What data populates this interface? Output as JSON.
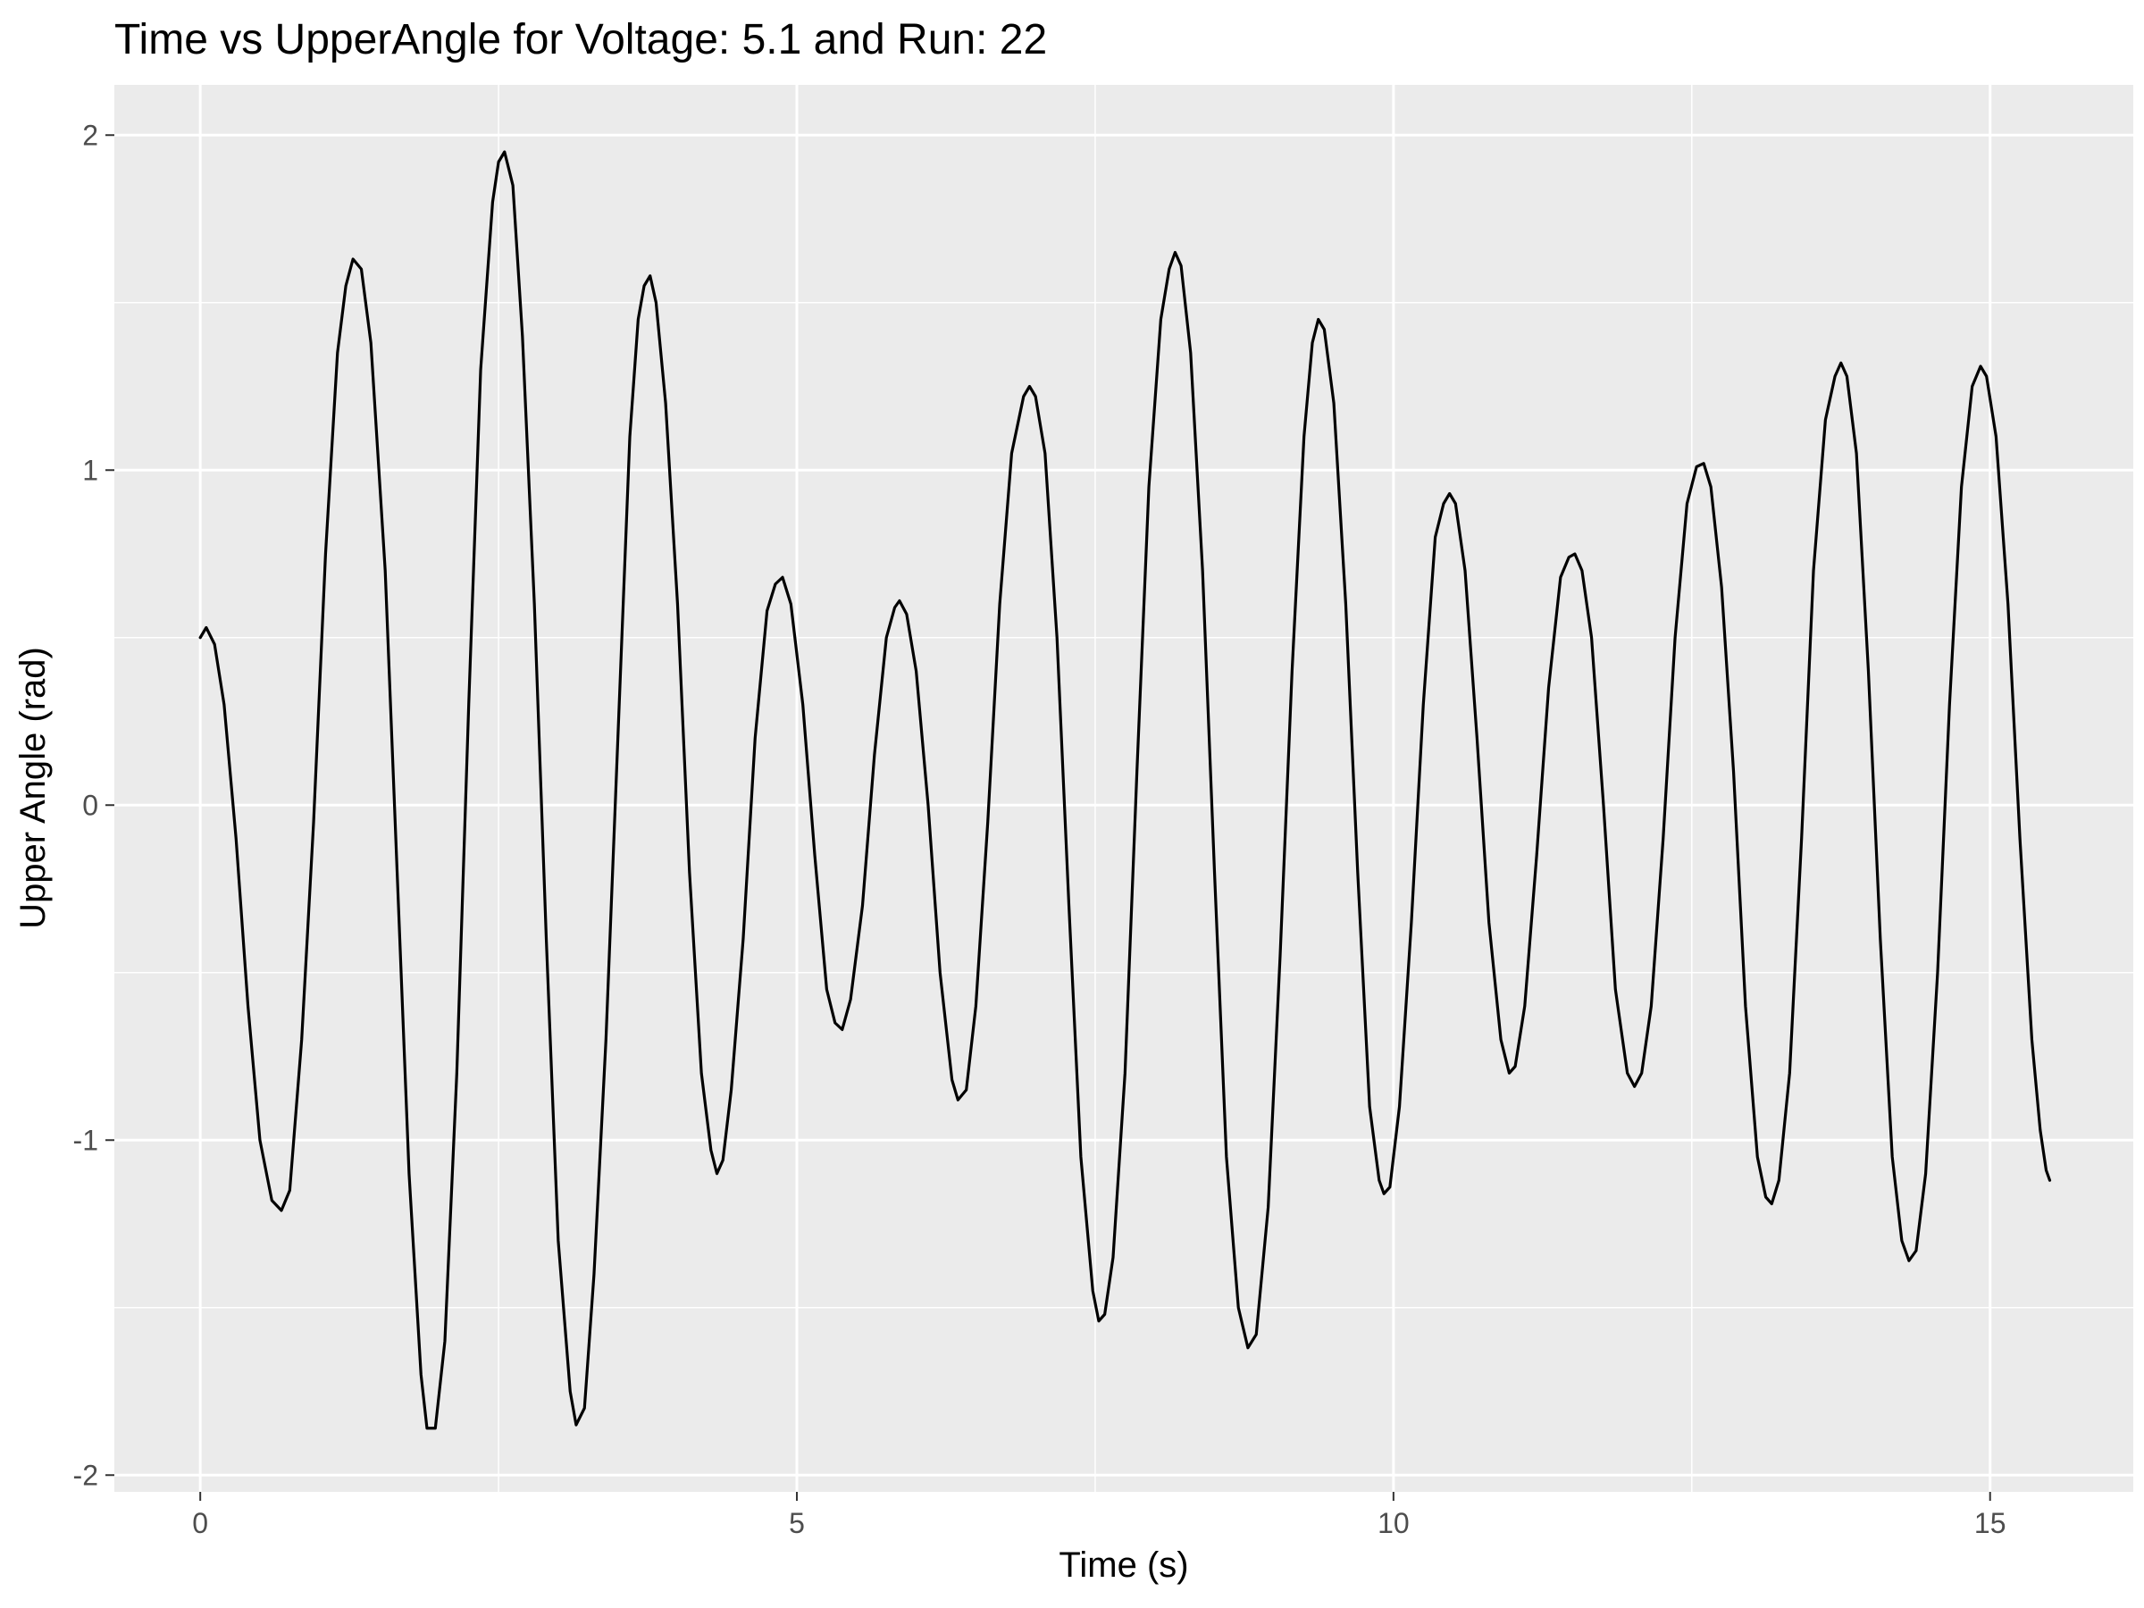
{
  "chart_data": {
    "type": "line",
    "title": "Time vs UpperAngle for Voltage: 5.1 and Run: 22",
    "xlabel": "Time (s)",
    "ylabel": "Upper Angle (rad)",
    "xlim": [
      -0.72,
      16.2
    ],
    "ylim": [
      -2.05,
      2.15
    ],
    "x_ticks": [
      0,
      5,
      10,
      15
    ],
    "x_tick_labels": [
      "0",
      "5",
      "10",
      "15"
    ],
    "y_ticks": [
      -2,
      -1,
      0,
      1,
      2
    ],
    "y_tick_labels": [
      "-2",
      "-1",
      "0",
      "1",
      "2"
    ],
    "grid": true,
    "legend": "none",
    "colors": {
      "panel_background": "#ebebeb",
      "grid": "#ffffff",
      "line": "#000000",
      "tick_text": "#4d4d4d",
      "text": "#000000"
    },
    "series": [
      {
        "points": [
          [
            0.0,
            0.5
          ],
          [
            0.05,
            0.53
          ],
          [
            0.12,
            0.48
          ],
          [
            0.2,
            0.3
          ],
          [
            0.3,
            -0.1
          ],
          [
            0.4,
            -0.6
          ],
          [
            0.5,
            -1.0
          ],
          [
            0.6,
            -1.18
          ],
          [
            0.68,
            -1.21
          ],
          [
            0.75,
            -1.15
          ],
          [
            0.85,
            -0.7
          ],
          [
            0.95,
            -0.05
          ],
          [
            1.05,
            0.75
          ],
          [
            1.15,
            1.35
          ],
          [
            1.22,
            1.55
          ],
          [
            1.28,
            1.63
          ],
          [
            1.35,
            1.6
          ],
          [
            1.43,
            1.38
          ],
          [
            1.55,
            0.7
          ],
          [
            1.65,
            -0.2
          ],
          [
            1.75,
            -1.1
          ],
          [
            1.85,
            -1.7
          ],
          [
            1.9,
            -1.86
          ],
          [
            1.97,
            -1.86
          ],
          [
            2.05,
            -1.6
          ],
          [
            2.15,
            -0.8
          ],
          [
            2.25,
            0.3
          ],
          [
            2.35,
            1.3
          ],
          [
            2.45,
            1.8
          ],
          [
            2.5,
            1.92
          ],
          [
            2.55,
            1.95
          ],
          [
            2.62,
            1.85
          ],
          [
            2.7,
            1.4
          ],
          [
            2.8,
            0.6
          ],
          [
            2.9,
            -0.4
          ],
          [
            3.0,
            -1.3
          ],
          [
            3.1,
            -1.75
          ],
          [
            3.15,
            -1.85
          ],
          [
            3.22,
            -1.8
          ],
          [
            3.3,
            -1.4
          ],
          [
            3.4,
            -0.7
          ],
          [
            3.5,
            0.2
          ],
          [
            3.6,
            1.1
          ],
          [
            3.67,
            1.45
          ],
          [
            3.72,
            1.55
          ],
          [
            3.77,
            1.58
          ],
          [
            3.82,
            1.5
          ],
          [
            3.9,
            1.2
          ],
          [
            4.0,
            0.6
          ],
          [
            4.1,
            -0.2
          ],
          [
            4.2,
            -0.8
          ],
          [
            4.28,
            -1.03
          ],
          [
            4.33,
            -1.1
          ],
          [
            4.38,
            -1.06
          ],
          [
            4.45,
            -0.85
          ],
          [
            4.55,
            -0.4
          ],
          [
            4.65,
            0.2
          ],
          [
            4.75,
            0.58
          ],
          [
            4.82,
            0.66
          ],
          [
            4.88,
            0.68
          ],
          [
            4.95,
            0.6
          ],
          [
            5.05,
            0.3
          ],
          [
            5.15,
            -0.15
          ],
          [
            5.25,
            -0.55
          ],
          [
            5.32,
            -0.65
          ],
          [
            5.38,
            -0.67
          ],
          [
            5.45,
            -0.58
          ],
          [
            5.55,
            -0.3
          ],
          [
            5.65,
            0.15
          ],
          [
            5.75,
            0.5
          ],
          [
            5.82,
            0.59
          ],
          [
            5.86,
            0.61
          ],
          [
            5.92,
            0.57
          ],
          [
            6.0,
            0.4
          ],
          [
            6.1,
            0.0
          ],
          [
            6.2,
            -0.5
          ],
          [
            6.3,
            -0.82
          ],
          [
            6.35,
            -0.88
          ],
          [
            6.42,
            -0.85
          ],
          [
            6.5,
            -0.6
          ],
          [
            6.6,
            -0.05
          ],
          [
            6.7,
            0.6
          ],
          [
            6.8,
            1.05
          ],
          [
            6.9,
            1.22
          ],
          [
            6.95,
            1.25
          ],
          [
            7.0,
            1.22
          ],
          [
            7.08,
            1.05
          ],
          [
            7.18,
            0.5
          ],
          [
            7.28,
            -0.3
          ],
          [
            7.38,
            -1.05
          ],
          [
            7.48,
            -1.45
          ],
          [
            7.53,
            -1.54
          ],
          [
            7.58,
            -1.52
          ],
          [
            7.65,
            -1.35
          ],
          [
            7.75,
            -0.8
          ],
          [
            7.85,
            0.1
          ],
          [
            7.95,
            0.95
          ],
          [
            8.05,
            1.45
          ],
          [
            8.12,
            1.6
          ],
          [
            8.17,
            1.65
          ],
          [
            8.22,
            1.61
          ],
          [
            8.3,
            1.35
          ],
          [
            8.4,
            0.7
          ],
          [
            8.5,
            -0.2
          ],
          [
            8.6,
            -1.05
          ],
          [
            8.7,
            -1.5
          ],
          [
            8.78,
            -1.62
          ],
          [
            8.85,
            -1.58
          ],
          [
            8.95,
            -1.2
          ],
          [
            9.05,
            -0.45
          ],
          [
            9.15,
            0.4
          ],
          [
            9.25,
            1.1
          ],
          [
            9.32,
            1.38
          ],
          [
            9.37,
            1.45
          ],
          [
            9.42,
            1.42
          ],
          [
            9.5,
            1.2
          ],
          [
            9.6,
            0.6
          ],
          [
            9.7,
            -0.2
          ],
          [
            9.8,
            -0.9
          ],
          [
            9.88,
            -1.12
          ],
          [
            9.92,
            -1.16
          ],
          [
            9.97,
            -1.14
          ],
          [
            10.05,
            -0.9
          ],
          [
            10.15,
            -0.35
          ],
          [
            10.25,
            0.3
          ],
          [
            10.35,
            0.8
          ],
          [
            10.42,
            0.9
          ],
          [
            10.47,
            0.93
          ],
          [
            10.52,
            0.9
          ],
          [
            10.6,
            0.7
          ],
          [
            10.7,
            0.2
          ],
          [
            10.8,
            -0.35
          ],
          [
            10.9,
            -0.7
          ],
          [
            10.97,
            -0.8
          ],
          [
            11.02,
            -0.78
          ],
          [
            11.1,
            -0.6
          ],
          [
            11.2,
            -0.15
          ],
          [
            11.3,
            0.35
          ],
          [
            11.4,
            0.68
          ],
          [
            11.47,
            0.74
          ],
          [
            11.52,
            0.75
          ],
          [
            11.58,
            0.7
          ],
          [
            11.66,
            0.5
          ],
          [
            11.76,
            0.0
          ],
          [
            11.86,
            -0.55
          ],
          [
            11.96,
            -0.8
          ],
          [
            12.02,
            -0.84
          ],
          [
            12.08,
            -0.8
          ],
          [
            12.16,
            -0.6
          ],
          [
            12.26,
            -0.1
          ],
          [
            12.36,
            0.5
          ],
          [
            12.46,
            0.9
          ],
          [
            12.54,
            1.01
          ],
          [
            12.6,
            1.02
          ],
          [
            12.66,
            0.95
          ],
          [
            12.75,
            0.65
          ],
          [
            12.85,
            0.1
          ],
          [
            12.95,
            -0.6
          ],
          [
            13.05,
            -1.05
          ],
          [
            13.12,
            -1.17
          ],
          [
            13.17,
            -1.19
          ],
          [
            13.23,
            -1.12
          ],
          [
            13.32,
            -0.8
          ],
          [
            13.42,
            -0.1
          ],
          [
            13.52,
            0.7
          ],
          [
            13.62,
            1.15
          ],
          [
            13.7,
            1.28
          ],
          [
            13.75,
            1.32
          ],
          [
            13.8,
            1.28
          ],
          [
            13.88,
            1.05
          ],
          [
            13.98,
            0.4
          ],
          [
            14.08,
            -0.4
          ],
          [
            14.18,
            -1.05
          ],
          [
            14.26,
            -1.3
          ],
          [
            14.32,
            -1.36
          ],
          [
            14.38,
            -1.33
          ],
          [
            14.46,
            -1.1
          ],
          [
            14.56,
            -0.5
          ],
          [
            14.66,
            0.3
          ],
          [
            14.76,
            0.95
          ],
          [
            14.85,
            1.25
          ],
          [
            14.92,
            1.31
          ],
          [
            14.97,
            1.28
          ],
          [
            15.05,
            1.1
          ],
          [
            15.15,
            0.6
          ],
          [
            15.25,
            -0.1
          ],
          [
            15.35,
            -0.7
          ],
          [
            15.42,
            -0.97
          ],
          [
            15.47,
            -1.09
          ],
          [
            15.5,
            -1.12
          ]
        ]
      }
    ]
  }
}
